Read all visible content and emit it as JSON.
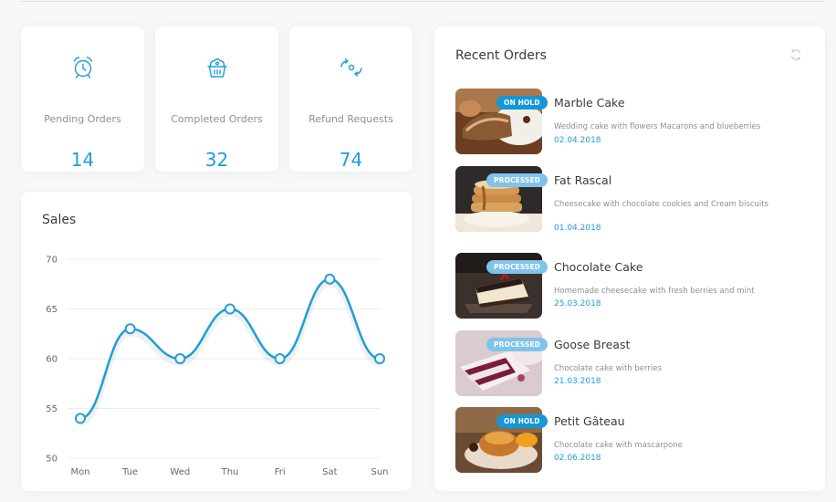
{
  "stats": [
    {
      "label": "Pending Orders",
      "value": "14",
      "icon": "alarm-clock-icon"
    },
    {
      "label": "Completed Orders",
      "value": "32",
      "icon": "cupcake-basket-icon"
    },
    {
      "label": "Refund Requests",
      "value": "74",
      "icon": "refund-arrows-icon"
    }
  ],
  "sales": {
    "title": "Sales"
  },
  "orders": {
    "title": "Recent Orders",
    "items": [
      {
        "badge": "ON HOLD",
        "name": "Marble Cake",
        "desc": "Wedding cake with flowers Macarons and blueberries",
        "date": "02.04.2018"
      },
      {
        "badge": "PROCESSED",
        "name": "Fat Rascal",
        "desc": "Cheesecake with chocolate cookies and Cream biscuits",
        "date": "01.04.2018"
      },
      {
        "badge": "PROCESSED",
        "name": "Chocolate Cake",
        "desc": "Homemade cheesecake with fresh berries and mint",
        "date": "25.03.2018"
      },
      {
        "badge": "PROCESSED",
        "name": "Goose Breast",
        "desc": "Chocolate cake with berries",
        "date": "21.03.2018"
      },
      {
        "badge": "ON HOLD",
        "name": "Petit Gâteau",
        "desc": "Chocolate cake with mascarpone",
        "date": "02.06.2018"
      }
    ]
  },
  "colors": {
    "accent": "#1f9ed8",
    "on_hold": "#1596d6",
    "processed": "#7fc3ea"
  },
  "chart_data": {
    "type": "line",
    "title": "Sales",
    "categories": [
      "Mon",
      "Tue",
      "Wed",
      "Thu",
      "Fri",
      "Sat",
      "Sun"
    ],
    "values": [
      54,
      63,
      60,
      65,
      60,
      68,
      60
    ],
    "ylim": [
      50,
      70
    ],
    "yticks": [
      "50",
      "55",
      "60",
      "65",
      "70"
    ],
    "grid": true,
    "smooth": true,
    "color": "#1f9ed8"
  }
}
